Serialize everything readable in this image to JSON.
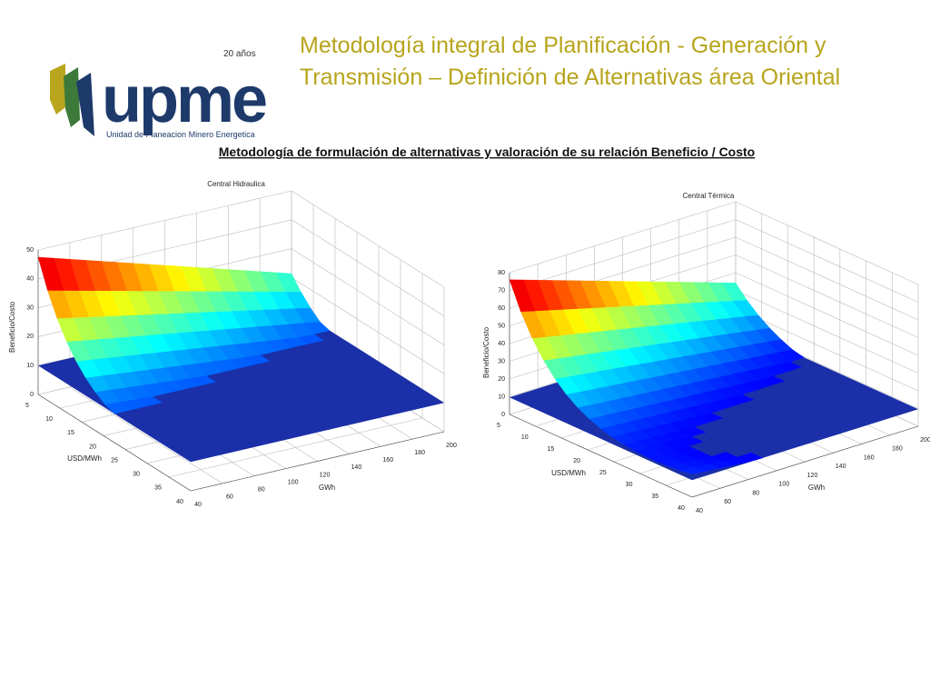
{
  "header": {
    "title_lines": [
      "Metodología integral de Planificación - Generación y",
      "Transmisión – Definición de Alternativas área Oriental"
    ],
    "logo": {
      "name": "upme",
      "anniversary": "20 años",
      "tagline": "Unidad de Planeacion Minero Energetica"
    }
  },
  "subtitle": "Metodología de formulación de alternativas y valoración de su relación Beneficio / Costo",
  "figures": [
    {
      "title": "Central Hidraulica",
      "z_label": "Beneficio/Costo",
      "x_label": "USD/MWh",
      "y_label": "GWh",
      "z_ticks": [
        0,
        10,
        20,
        30,
        40,
        50
      ],
      "x_ticks": [
        5,
        10,
        15,
        20,
        25,
        30,
        35,
        40
      ],
      "y_ticks": [
        40,
        60,
        80,
        100,
        120,
        140,
        160,
        180,
        200
      ]
    },
    {
      "title": "Central Térmica",
      "z_label": "Beneficio/Costo",
      "x_label": "USD/MWh",
      "y_label": "GWh",
      "z_ticks": [
        0,
        10,
        20,
        30,
        40,
        50,
        60,
        70,
        80
      ],
      "x_ticks": [
        5,
        10,
        15,
        20,
        25,
        30,
        35,
        40
      ],
      "y_ticks": [
        40,
        60,
        80,
        100,
        120,
        140,
        160,
        180,
        200
      ]
    }
  ]
}
